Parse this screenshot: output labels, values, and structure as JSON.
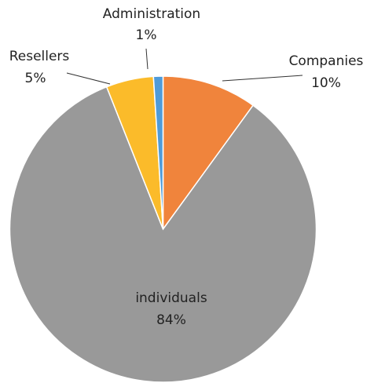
{
  "chart_data": {
    "type": "pie",
    "categories": [
      "Companies",
      "individuals",
      "Resellers",
      "Administration"
    ],
    "values": [
      10,
      84,
      5,
      1
    ],
    "value_labels": [
      "10%",
      "84%",
      "5%",
      "1%"
    ],
    "colors": [
      "#f0843c",
      "#999999",
      "#fbbb2a",
      "#4f9bd9"
    ]
  }
}
